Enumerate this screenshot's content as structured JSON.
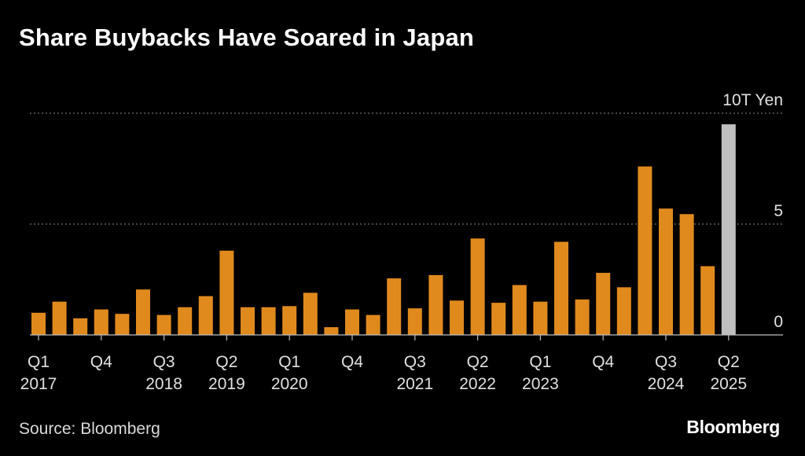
{
  "title": "Share Buybacks Have Soared in Japan",
  "source": "Source: Bloomberg",
  "brand": "Bloomberg",
  "chart_data": {
    "type": "bar",
    "title": "Share Buybacks Have Soared in Japan",
    "xlabel": "",
    "ylabel": "",
    "ylim": [
      0,
      10
    ],
    "yticks": [
      {
        "value": 0,
        "label": "0"
      },
      {
        "value": 5,
        "label": "5"
      },
      {
        "value": 10,
        "label": "10T Yen"
      }
    ],
    "grid": true,
    "categories": [
      "Q1 2017",
      "Q2 2017",
      "Q3 2017",
      "Q4 2017",
      "Q1 2018",
      "Q2 2018",
      "Q3 2018",
      "Q4 2018",
      "Q1 2019",
      "Q2 2019",
      "Q3 2019",
      "Q4 2019",
      "Q1 2020",
      "Q2 2020",
      "Q3 2020",
      "Q4 2020",
      "Q1 2021",
      "Q2 2021",
      "Q3 2021",
      "Q4 2021",
      "Q1 2022",
      "Q2 2022",
      "Q3 2022",
      "Q4 2022",
      "Q1 2023",
      "Q2 2023",
      "Q3 2023",
      "Q4 2023",
      "Q1 2024",
      "Q2 2024",
      "Q3 2024",
      "Q4 2024",
      "Q1 2025",
      "Q2 2025"
    ],
    "values": [
      1.0,
      1.5,
      0.75,
      1.15,
      0.95,
      2.05,
      0.9,
      1.25,
      1.75,
      3.8,
      1.25,
      1.25,
      1.3,
      1.9,
      0.35,
      1.15,
      0.9,
      2.55,
      1.2,
      2.7,
      1.55,
      4.35,
      1.45,
      2.25,
      1.5,
      4.2,
      1.6,
      2.8,
      2.15,
      7.6,
      5.7,
      5.45,
      3.1,
      9.5
    ],
    "colors": {
      "default": "#E08A1E",
      "highlight": "#BFBFBF",
      "highlight_index": 33,
      "grid": "#8a8a8a",
      "axis": "#bdbdbd"
    },
    "x_tick_labels": [
      {
        "index": 0,
        "quarter": "Q1",
        "year": "2017"
      },
      {
        "index": 3,
        "quarter": "Q4",
        "year": ""
      },
      {
        "index": 6,
        "quarter": "Q3",
        "year": "2018"
      },
      {
        "index": 9,
        "quarter": "Q2",
        "year": "2019"
      },
      {
        "index": 12,
        "quarter": "Q1",
        "year": "2020"
      },
      {
        "index": 15,
        "quarter": "Q4",
        "year": ""
      },
      {
        "index": 18,
        "quarter": "Q3",
        "year": "2021"
      },
      {
        "index": 21,
        "quarter": "Q2",
        "year": "2022"
      },
      {
        "index": 24,
        "quarter": "Q1",
        "year": "2023"
      },
      {
        "index": 27,
        "quarter": "Q4",
        "year": ""
      },
      {
        "index": 30,
        "quarter": "Q3",
        "year": "2024"
      },
      {
        "index": 33,
        "quarter": "Q2",
        "year": "2025"
      }
    ]
  }
}
